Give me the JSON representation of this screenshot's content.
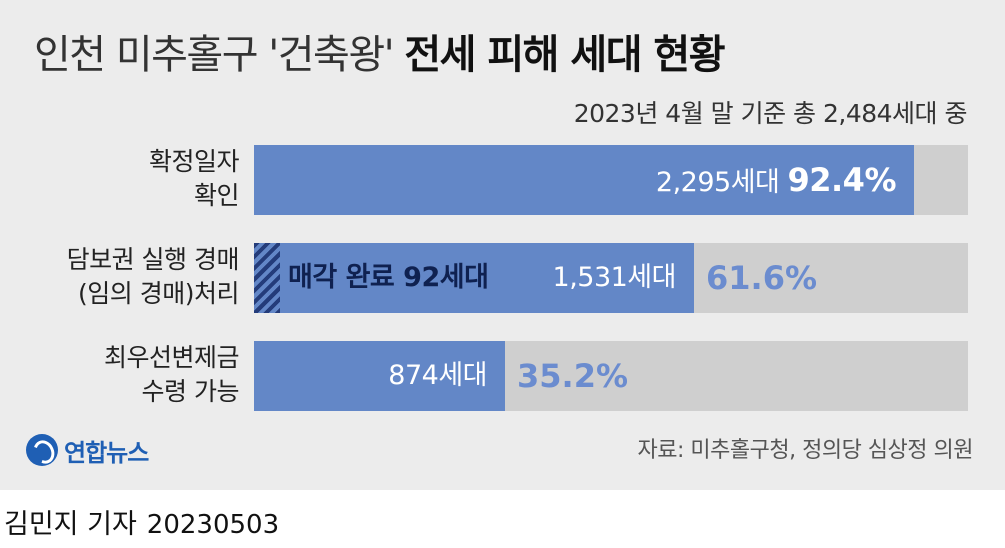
{
  "title": {
    "light": "인천 미추홀구 '건축왕'",
    "bold": "전세 피해 세대 현황"
  },
  "subtitle": "2023년 4월 말 기준 총 2,484세대 중",
  "chart_data": {
    "type": "bar",
    "orientation": "horizontal",
    "total": 2484,
    "unit": "세대",
    "categories": [
      "확정일자 확인",
      "담보권 실행 경매(임의 경매)처리",
      "최우선변제금 수령 가능"
    ],
    "rows": [
      {
        "label_lines": [
          "확정일자",
          "확인"
        ],
        "count": 2295,
        "count_label": "2,295세대",
        "percent": 92.4,
        "percent_label": "92.4%"
      },
      {
        "label_lines": [
          "담보권 실행 경매",
          "(임의 경매)처리"
        ],
        "count": 1531,
        "count_label": "1,531세대",
        "percent": 61.6,
        "percent_label": "61.6%",
        "sub_count": 92,
        "sub_label": "매각 완료 92세대"
      },
      {
        "label_lines": [
          "최우선변제금",
          "수령 가능"
        ],
        "count": 874,
        "count_label": "874세대",
        "percent": 35.2,
        "percent_label": "35.2%"
      }
    ],
    "colors": {
      "fill": "#6387c7",
      "track": "#cfcfcf",
      "hatch": "#243c7a",
      "pct_outside": "#6b8ccf"
    }
  },
  "logo": {
    "text": "연합뉴스",
    "icon": "yonhap-logo-icon"
  },
  "source": "자료: 미추홀구청, 정의당 심상정 의원",
  "credit": {
    "name": "김민지 기자",
    "date": "20230503"
  }
}
